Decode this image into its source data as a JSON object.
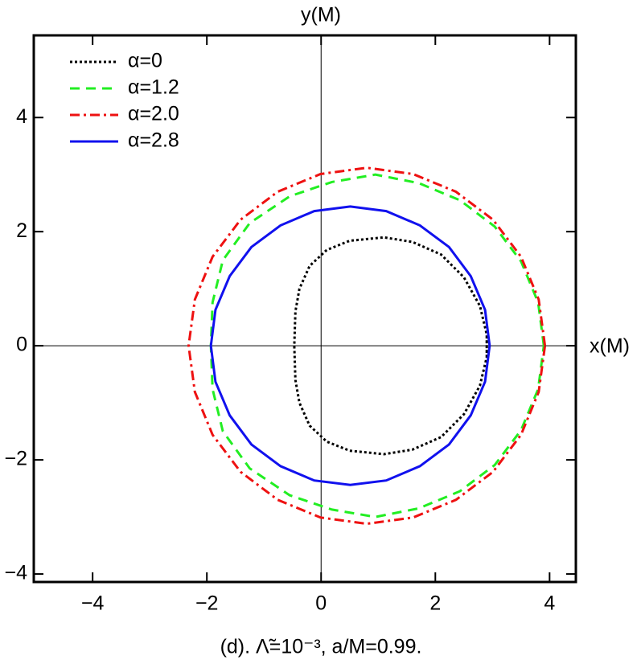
{
  "chart_data": {
    "type": "line",
    "xlabel": "x(M)",
    "ylabel": "y(M)",
    "caption": "(d). Λ̃=10⁻³, a/M=0.99.",
    "xlim": [
      -5.03,
      4.46
    ],
    "ylim": [
      -4.14,
      5.44
    ],
    "xticks": [
      {
        "value": -4,
        "label": "−4"
      },
      {
        "value": -2,
        "label": "−2"
      },
      0,
      2,
      4
    ],
    "yticks": [
      {
        "value": -4,
        "label": "−4"
      },
      {
        "value": -2,
        "label": "−2"
      },
      0,
      2,
      4
    ],
    "legend": "upper left",
    "series": [
      {
        "name": "α=0",
        "color": "#000000",
        "dash": "dotted",
        "x": [
          2.9,
          2.9,
          2.78,
          2.5,
          2.1,
          1.6,
          1.1,
          0.5,
          0.1,
          -0.2,
          -0.38,
          -0.45,
          -0.47,
          -0.45,
          -0.38,
          -0.2,
          0.1,
          0.5,
          1.1,
          1.6,
          2.1,
          2.5,
          2.78,
          2.9,
          2.9
        ],
        "y": [
          -0.2,
          0.2,
          0.7,
          1.2,
          1.6,
          1.82,
          1.9,
          1.84,
          1.68,
          1.4,
          1.0,
          0.6,
          0,
          -0.6,
          -1.0,
          -1.4,
          -1.68,
          -1.84,
          -1.9,
          -1.82,
          -1.6,
          -1.2,
          -0.7,
          -0.2,
          0.2
        ]
      },
      {
        "name": "α=1.2",
        "color": "#22ee22",
        "dash": "dashed",
        "x": [
          3.9,
          3.8,
          3.5,
          3.04,
          2.43,
          1.71,
          0.95,
          0.19,
          -0.55,
          -1.25,
          -1.72,
          -1.9,
          -1.93,
          -1.9,
          -1.72,
          -1.25,
          -0.55,
          0.19,
          0.95,
          1.71,
          2.43,
          3.04,
          3.5,
          3.8,
          3.9
        ],
        "y": [
          0,
          0.76,
          1.48,
          2.09,
          2.55,
          2.85,
          3.0,
          2.87,
          2.62,
          2.15,
          1.5,
          0.76,
          0,
          -0.76,
          -1.5,
          -2.15,
          -2.62,
          -2.87,
          -3.0,
          -2.85,
          -2.55,
          -2.09,
          -1.48,
          -0.76,
          0
        ]
      },
      {
        "name": "α=2.0",
        "color": "#ee1111",
        "dash": "dashdot",
        "x": [
          3.92,
          3.81,
          3.5,
          3.01,
          2.36,
          1.61,
          0.8,
          -0.01,
          -0.76,
          -1.41,
          -1.9,
          -2.21,
          -2.32,
          -2.21,
          -1.9,
          -1.41,
          -0.76,
          -0.01,
          0.8,
          1.61,
          2.36,
          3.01,
          3.5,
          3.81,
          3.92
        ],
        "y": [
          0,
          0.81,
          1.56,
          2.21,
          2.7,
          3.01,
          3.12,
          3.01,
          2.7,
          2.21,
          1.56,
          0.81,
          0,
          -0.81,
          -1.56,
          -2.21,
          -2.7,
          -3.01,
          -3.12,
          -3.01,
          -2.7,
          -2.21,
          -1.56,
          -0.81,
          0
        ]
      },
      {
        "name": "α=2.8",
        "color": "#1111ee",
        "dash": "solid",
        "x": [
          2.95,
          2.87,
          2.62,
          2.24,
          1.73,
          1.14,
          0.51,
          -0.12,
          -0.71,
          -1.22,
          -1.6,
          -1.85,
          -1.93,
          -1.85,
          -1.6,
          -1.22,
          -0.71,
          -0.12,
          0.51,
          1.14,
          1.73,
          2.24,
          2.62,
          2.87,
          2.95
        ],
        "y": [
          0,
          0.63,
          1.22,
          1.73,
          2.11,
          2.36,
          2.44,
          2.36,
          2.11,
          1.73,
          1.22,
          0.63,
          0,
          -0.63,
          -1.22,
          -1.73,
          -2.11,
          -2.36,
          -2.44,
          -2.36,
          -2.11,
          -1.73,
          -1.22,
          -0.63,
          0
        ]
      }
    ]
  }
}
